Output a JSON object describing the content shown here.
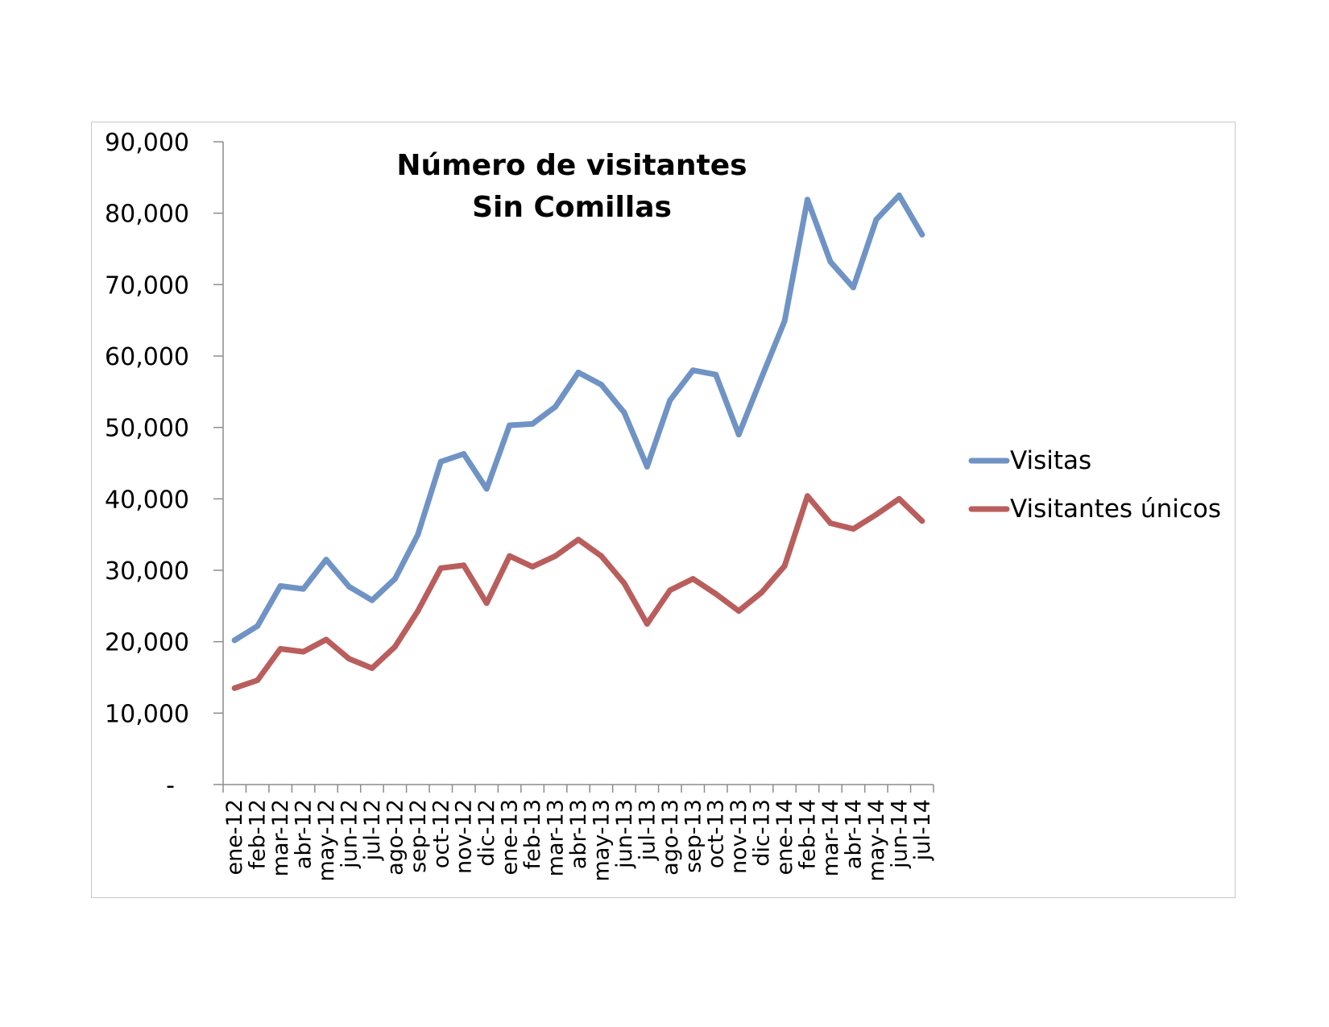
{
  "chart_data": {
    "type": "line",
    "title": [
      "Número de visitantes",
      "Sin Comillas"
    ],
    "xlabel": "",
    "ylabel": "",
    "categories": [
      "ene-12",
      "feb-12",
      "mar-12",
      "abr-12",
      "may-12",
      "jun-12",
      "jul-12",
      "ago-12",
      "sep-12",
      "oct-12",
      "nov-12",
      "dic-12",
      "ene-13",
      "feb-13",
      "mar-13",
      "abr-13",
      "may-13",
      "jun-13",
      "jul-13",
      "ago-13",
      "sep-13",
      "oct-13",
      "nov-13",
      "dic-13",
      "ene-14",
      "feb-14",
      "mar-14",
      "abr-14",
      "may-14",
      "jun-14",
      "jul-14"
    ],
    "ylim": [
      0,
      90000
    ],
    "yticks": [
      0,
      10000,
      20000,
      30000,
      40000,
      50000,
      60000,
      70000,
      80000,
      90000
    ],
    "ytick_labels": [
      "-",
      "10,000",
      "20,000",
      "30,000",
      "40,000",
      "50,000",
      "60,000",
      "70,000",
      "80,000",
      "90,000"
    ],
    "grid": false,
    "legend_position": "right",
    "series": [
      {
        "name": "Visitas",
        "color": "#6f93c4",
        "values": [
          20200,
          22200,
          27800,
          27400,
          31500,
          27700,
          25800,
          28800,
          35000,
          45200,
          46300,
          41400,
          50300,
          50500,
          52900,
          57700,
          56000,
          52100,
          44500,
          53800,
          58000,
          57400,
          49000,
          57000,
          64900,
          81900,
          73200,
          69600,
          79100,
          82500,
          77000
        ]
      },
      {
        "name": "Visitantes únicos",
        "color": "#b95e5c",
        "values": [
          13500,
          14600,
          19000,
          18600,
          20300,
          17600,
          16300,
          19300,
          24300,
          30300,
          30700,
          25400,
          32000,
          30500,
          32000,
          34300,
          32000,
          28200,
          22500,
          27200,
          28800,
          26700,
          24300,
          26900,
          30600,
          40400,
          36600,
          35800,
          37800,
          40000,
          36900
        ]
      }
    ]
  }
}
